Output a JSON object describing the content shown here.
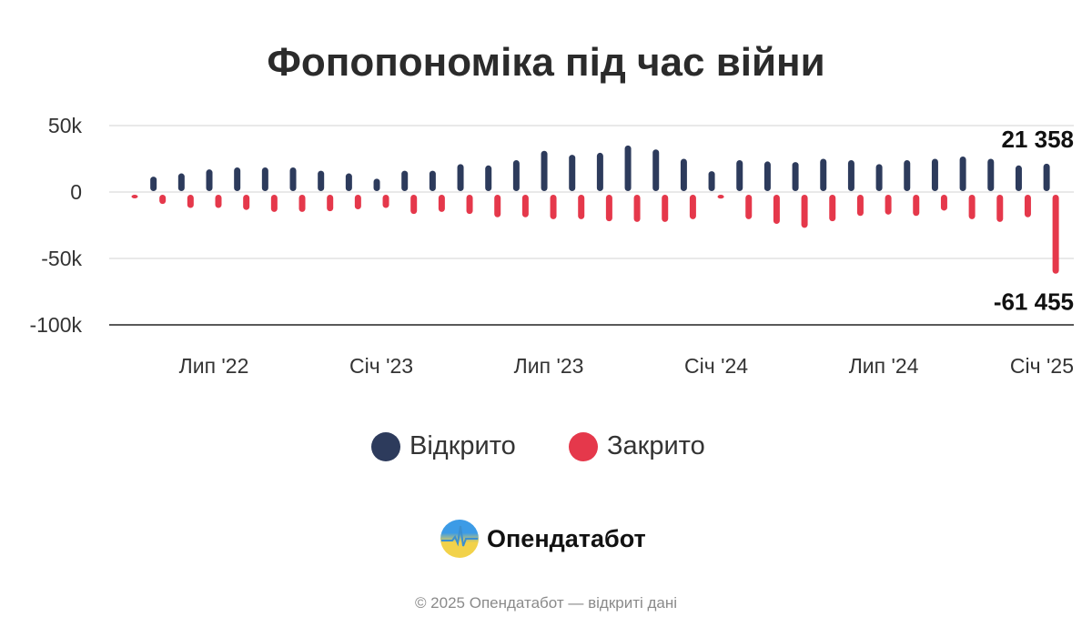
{
  "chart_data": {
    "type": "bar",
    "title": "Фопопономіка під час війни",
    "categories": [
      "2022-04",
      "2022-05",
      "2022-06",
      "2022-07",
      "2022-08",
      "2022-09",
      "2022-10",
      "2022-11",
      "2022-12",
      "2023-01",
      "2023-02",
      "2023-03",
      "2023-04",
      "2023-05",
      "2023-06",
      "2023-07",
      "2023-08",
      "2023-09",
      "2023-10",
      "2023-11",
      "2023-12",
      "2024-01",
      "2024-02",
      "2024-03",
      "2024-04",
      "2024-05",
      "2024-06",
      "2024-07",
      "2024-08",
      "2024-09",
      "2024-10",
      "2024-11",
      "2024-12",
      "2025-01"
    ],
    "series": [
      {
        "name": "Відкрито",
        "color": "#2d3b5c",
        "values": [
          0,
          11600,
          14000,
          17000,
          18500,
          18500,
          18500,
          16000,
          14000,
          10000,
          16000,
          16000,
          21000,
          20000,
          24000,
          31000,
          28000,
          29500,
          35000,
          32000,
          25000,
          15700,
          24000,
          23000,
          22500,
          25000,
          24000,
          21000,
          24000,
          25000,
          26700,
          25000,
          20000,
          21358
        ]
      },
      {
        "name": "Закрито",
        "color": "#e5384b",
        "values": [
          -4000,
          -9000,
          -12000,
          -12000,
          -13500,
          -15000,
          -15000,
          -14500,
          -13000,
          -12000,
          -16500,
          -15000,
          -16500,
          -19000,
          -19000,
          -20500,
          -20500,
          -22000,
          -22500,
          -22500,
          -20500,
          -5000,
          -20500,
          -24000,
          -27000,
          -22000,
          -18000,
          -17000,
          -18000,
          -14000,
          -20500,
          -22500,
          -19000,
          -61455
        ]
      }
    ],
    "y_ticks": [
      {
        "v": 50000,
        "label": "50k"
      },
      {
        "v": 0,
        "label": "0"
      },
      {
        "v": -50000,
        "label": "-50k"
      },
      {
        "v": -100000,
        "label": "-100k"
      }
    ],
    "x_ticks": [
      {
        "cat": "2022-07",
        "label": "Лип '22"
      },
      {
        "cat": "2023-01",
        "label": "Січ '23"
      },
      {
        "cat": "2023-07",
        "label": "Лип '23"
      },
      {
        "cat": "2024-01",
        "label": "Січ '24"
      },
      {
        "cat": "2024-07",
        "label": "Лип '24"
      },
      {
        "cat": "2025-01",
        "label": "Січ '25"
      }
    ],
    "ylim": [
      -100000,
      50000
    ],
    "grid": true,
    "annotations": [
      {
        "label": "21 358",
        "series": 0,
        "cat": "2025-01"
      },
      {
        "label": "-61 455",
        "series": 1,
        "cat": "2025-01"
      }
    ],
    "legend_position": "bottom"
  },
  "legend": [
    {
      "label": "Відкрито",
      "color": "#2d3b5c"
    },
    {
      "label": "Закрито",
      "color": "#e5384b"
    }
  ],
  "brand": {
    "name": "Опендатабот",
    "icon": "opendatabot-logo"
  },
  "footer": "© 2025 Опендатабот — відкриті дані"
}
